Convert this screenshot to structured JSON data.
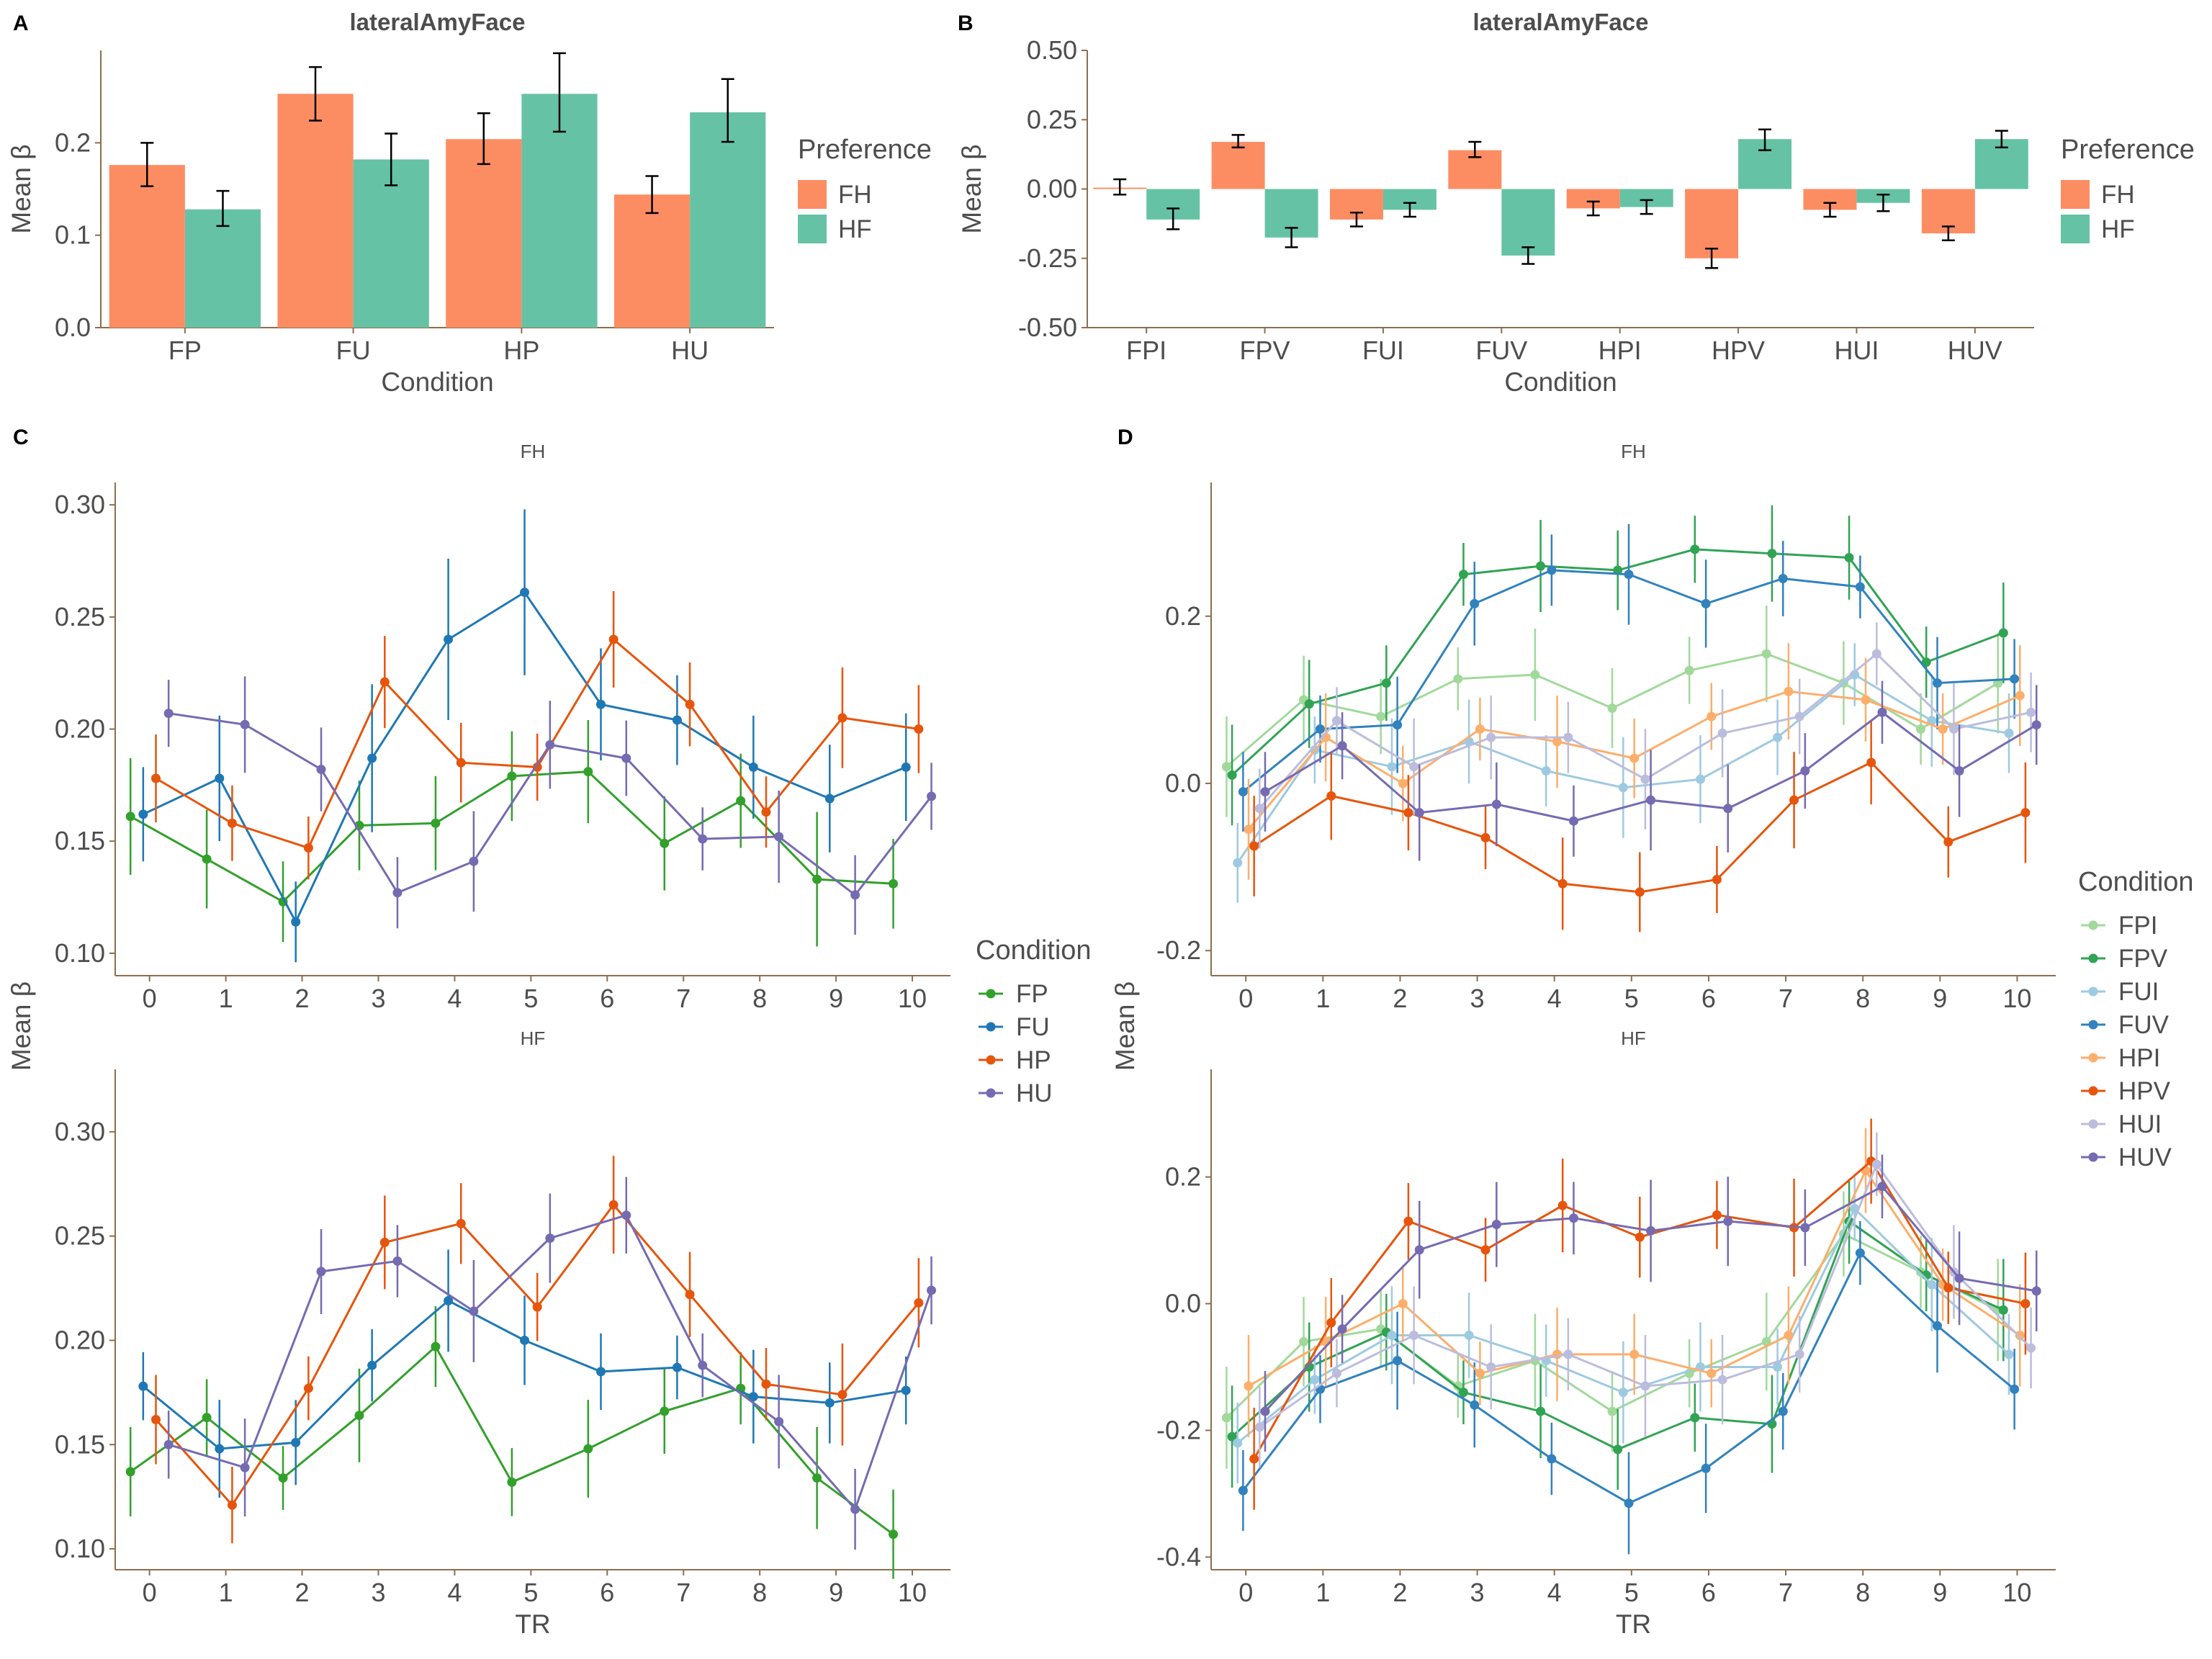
{
  "colors": {
    "FH": "#fc8d62",
    "HF": "#66c2a5",
    "FP": "#33a02c",
    "FU": "#1f78b4",
    "HP": "#e6550d",
    "HU": "#756bb1",
    "FPI": "#a1d99b",
    "FPV": "#31a354",
    "FUI": "#9ecae1",
    "FUV": "#3182bd",
    "HPI": "#fdae6b",
    "HPV": "#e6550d",
    "HUI": "#bcbddc",
    "HUV": "#756bb1",
    "axis": "#8b6f4e",
    "text": "#4d4d4d",
    "error_bar": "#000000"
  },
  "chart_data": [
    {
      "panel": "A",
      "type": "bar",
      "title": "lateralAmyFace",
      "xlabel": "Condition",
      "ylabel": "Mean β",
      "ylim": [
        0,
        0.3
      ],
      "yticks": [
        0.0,
        0.1,
        0.2
      ],
      "ytick_labels": [
        "0.0",
        "0.1",
        "0.2"
      ],
      "categories": [
        "FP",
        "FU",
        "HP",
        "HU"
      ],
      "legend_title": "Preference",
      "legend_position": "right",
      "series": [
        {
          "name": "FH",
          "values": [
            0.176,
            0.253,
            0.204,
            0.144
          ],
          "err_low": [
            0.153,
            0.224,
            0.177,
            0.124
          ],
          "err_high": [
            0.2,
            0.282,
            0.232,
            0.164
          ]
        },
        {
          "name": "HF",
          "values": [
            0.128,
            0.182,
            0.253,
            0.233
          ],
          "err_low": [
            0.11,
            0.154,
            0.212,
            0.201
          ],
          "err_high": [
            0.148,
            0.21,
            0.297,
            0.269
          ]
        }
      ]
    },
    {
      "panel": "B",
      "type": "bar",
      "title": "lateralAmyFace",
      "xlabel": "Condition",
      "ylabel": "Mean β",
      "ylim": [
        -0.5,
        0.5
      ],
      "yticks": [
        -0.5,
        -0.25,
        0.0,
        0.25,
        0.5
      ],
      "ytick_labels": [
        "-0.50",
        "-0.25",
        "0.00",
        "0.25",
        "0.50"
      ],
      "categories": [
        "FPI",
        "FPV",
        "FUI",
        "FUV",
        "HPI",
        "HPV",
        "HUI",
        "HUV"
      ],
      "legend_title": "Preference",
      "legend_position": "right",
      "series": [
        {
          "name": "FH",
          "values": [
            0.005,
            0.17,
            -0.11,
            0.14,
            -0.07,
            -0.25,
            -0.075,
            -0.16
          ],
          "err_low": [
            -0.02,
            0.15,
            -0.135,
            0.115,
            -0.095,
            -0.285,
            -0.1,
            -0.185
          ],
          "err_high": [
            0.035,
            0.195,
            -0.085,
            0.17,
            -0.045,
            -0.215,
            -0.05,
            -0.135
          ]
        },
        {
          "name": "HF",
          "values": [
            -0.11,
            -0.175,
            -0.075,
            -0.24,
            -0.065,
            0.18,
            -0.05,
            0.18
          ],
          "err_low": [
            -0.145,
            -0.21,
            -0.1,
            -0.27,
            -0.09,
            0.14,
            -0.08,
            0.15
          ],
          "err_high": [
            -0.07,
            -0.14,
            -0.05,
            -0.21,
            -0.04,
            0.215,
            -0.02,
            0.21
          ]
        }
      ]
    },
    {
      "panel": "C",
      "type": "line",
      "xlabel": "TR",
      "ylabel": "Mean β",
      "x": [
        0,
        1,
        2,
        3,
        4,
        5,
        6,
        7,
        8,
        9,
        10
      ],
      "xlim": [
        -0.45,
        10.5
      ],
      "legend_title": "Condition",
      "legend_position": "right",
      "facets": [
        {
          "label": "FH",
          "ylim": [
            0.09,
            0.31
          ],
          "yticks": [
            0.1,
            0.15,
            0.2,
            0.25,
            0.3
          ],
          "ytick_labels": [
            "0.10",
            "0.15",
            "0.20",
            "0.25",
            "0.30"
          ],
          "series": [
            {
              "name": "FP",
              "values": [
                0.161,
                0.142,
                0.123,
                0.157,
                0.158,
                0.179,
                0.181,
                0.149,
                0.168,
                0.133,
                0.131
              ],
              "err": [
                0.026,
                0.022,
                0.018,
                0.02,
                0.021,
                0.02,
                0.023,
                0.021,
                0.021,
                0.03,
                0.02
              ]
            },
            {
              "name": "FU",
              "values": [
                0.162,
                0.178,
                0.114,
                0.187,
                0.24,
                0.261,
                0.211,
                0.204,
                0.183,
                0.169,
                0.183
              ],
              "err": [
                0.021,
                0.028,
                0.018,
                0.033,
                0.036,
                0.037,
                0.025,
                0.02,
                0.023,
                0.024,
                0.024
              ]
            },
            {
              "name": "HP",
              "values": [
                0.178,
                0.158,
                0.147,
                0.221,
                0.185,
                0.183,
                0.24,
                0.211,
                0.163,
                0.205,
                0.2
              ]
            },
            {
              "name": "HU",
              "values": [
                0.207,
                0.202,
                0.182,
                0.127,
                0.141,
                0.193,
                0.187,
                0.151,
                0.152,
                0.126,
                0.17
              ]
            }
          ]
        },
        {
          "label": "HF",
          "ylim": [
            0.09,
            0.33
          ],
          "yticks": [
            0.1,
            0.15,
            0.2,
            0.25,
            0.3
          ],
          "ytick_labels": [
            "0.10",
            "0.15",
            "0.20",
            "0.25",
            "0.30"
          ],
          "series": [
            {
              "name": "FP",
              "values": [
                0.137,
                0.163,
                0.134,
                0.164,
                0.197,
                0.132,
                0.148,
                0.166,
                0.177,
                0.134,
                0.107
              ]
            },
            {
              "name": "FU",
              "values": [
                0.178,
                0.148,
                0.151,
                0.188,
                0.219,
                0.2,
                0.185,
                0.187,
                0.173,
                0.17,
                0.176
              ]
            },
            {
              "name": "HP",
              "values": [
                0.162,
                0.121,
                0.177,
                0.247,
                0.256,
                0.216,
                0.265,
                0.222,
                0.179,
                0.174,
                0.218
              ]
            },
            {
              "name": "HU",
              "values": [
                0.15,
                0.139,
                0.233,
                0.238,
                0.214,
                0.249,
                0.26,
                0.188,
                0.161,
                0.119,
                0.224
              ]
            }
          ]
        }
      ]
    },
    {
      "panel": "D",
      "type": "line",
      "xlabel": "TR",
      "ylabel": "Mean β",
      "x": [
        0,
        1,
        2,
        3,
        4,
        5,
        6,
        7,
        8,
        9,
        10
      ],
      "xlim": [
        -0.45,
        10.5
      ],
      "legend_title": "Condition",
      "legend_position": "right",
      "facets": [
        {
          "label": "FH",
          "ylim": [
            -0.23,
            0.36
          ],
          "yticks": [
            -0.2,
            0.0,
            0.2
          ],
          "ytick_labels": [
            "-0.2",
            "0.0",
            "0.2"
          ],
          "series": [
            {
              "name": "FPI",
              "values": [
                0.02,
                0.1,
                0.08,
                0.125,
                0.13,
                0.09,
                0.135,
                0.155,
                0.12,
                0.065,
                0.12
              ]
            },
            {
              "name": "FPV",
              "values": [
                0.01,
                0.095,
                0.12,
                0.25,
                0.26,
                0.255,
                0.28,
                0.275,
                0.27,
                0.145,
                0.18
              ]
            },
            {
              "name": "FUI",
              "values": [
                -0.095,
                0.04,
                0.02,
                0.05,
                0.015,
                -0.005,
                0.005,
                0.055,
                0.13,
                0.075,
                0.06
              ]
            },
            {
              "name": "FUV",
              "values": [
                -0.01,
                0.065,
                0.07,
                0.215,
                0.255,
                0.25,
                0.215,
                0.245,
                0.235,
                0.12,
                0.125
              ]
            },
            {
              "name": "HPI",
              "values": [
                -0.055,
                0.055,
                0.0,
                0.065,
                0.05,
                0.03,
                0.08,
                0.11,
                0.1,
                0.065,
                0.105
              ]
            },
            {
              "name": "HPV",
              "values": [
                -0.075,
                -0.015,
                -0.035,
                -0.065,
                -0.12,
                -0.13,
                -0.115,
                -0.02,
                0.025,
                -0.07,
                -0.035
              ]
            },
            {
              "name": "HUI",
              "values": [
                -0.03,
                0.075,
                0.02,
                0.055,
                0.055,
                0.005,
                0.06,
                0.08,
                0.155,
                0.065,
                0.085
              ]
            },
            {
              "name": "HUV",
              "values": [
                -0.01,
                0.045,
                -0.035,
                -0.025,
                -0.045,
                -0.02,
                -0.03,
                0.015,
                0.085,
                0.015,
                0.07
              ]
            }
          ]
        },
        {
          "label": "HF",
          "ylim": [
            -0.42,
            0.37
          ],
          "yticks": [
            -0.4,
            -0.2,
            0.0,
            0.2
          ],
          "ytick_labels": [
            "-0.4",
            "-0.2",
            "0.0",
            "0.2"
          ],
          "series": [
            {
              "name": "FPI",
              "values": [
                -0.18,
                -0.06,
                -0.04,
                -0.13,
                -0.09,
                -0.17,
                -0.11,
                -0.06,
                0.11,
                0.05,
                -0.01
              ]
            },
            {
              "name": "FPV",
              "values": [
                -0.21,
                -0.1,
                -0.045,
                -0.14,
                -0.17,
                -0.23,
                -0.18,
                -0.19,
                0.13,
                0.045,
                -0.01
              ]
            },
            {
              "name": "FUI",
              "values": [
                -0.22,
                -0.12,
                -0.05,
                -0.05,
                -0.09,
                -0.14,
                -0.1,
                -0.1,
                0.15,
                0.03,
                -0.08
              ]
            },
            {
              "name": "FUV",
              "values": [
                -0.295,
                -0.135,
                -0.09,
                -0.16,
                -0.245,
                -0.315,
                -0.26,
                -0.17,
                0.08,
                -0.035,
                -0.135
              ]
            },
            {
              "name": "HPI",
              "values": [
                -0.13,
                -0.06,
                0.0,
                -0.11,
                -0.08,
                -0.08,
                -0.11,
                -0.05,
                0.21,
                0.03,
                -0.05
              ]
            },
            {
              "name": "HPV",
              "values": [
                -0.245,
                -0.03,
                0.13,
                0.085,
                0.155,
                0.105,
                0.14,
                0.12,
                0.225,
                0.025,
                0.0
              ]
            },
            {
              "name": "HUI",
              "values": [
                -0.195,
                -0.11,
                -0.05,
                -0.1,
                -0.08,
                -0.13,
                -0.12,
                -0.08,
                0.22,
                0.05,
                -0.07
              ]
            },
            {
              "name": "HUV",
              "values": [
                -0.17,
                -0.04,
                0.085,
                0.125,
                0.135,
                0.115,
                0.13,
                0.12,
                0.185,
                0.04,
                0.02
              ]
            }
          ]
        }
      ]
    }
  ]
}
